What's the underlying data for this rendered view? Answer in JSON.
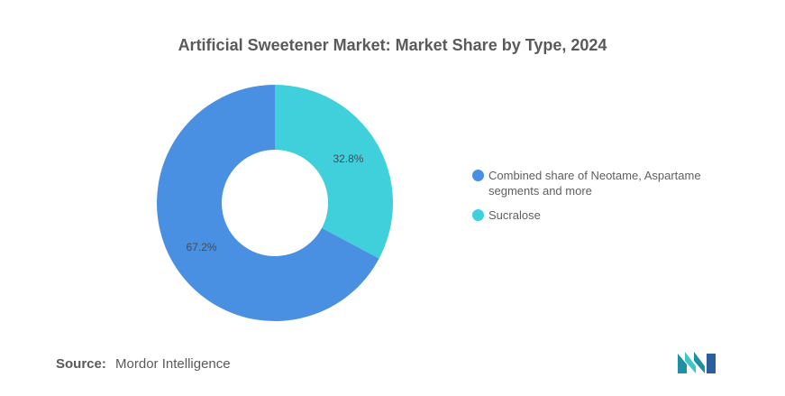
{
  "chart_data": {
    "type": "pie",
    "title": "Artificial Sweetener Market: Market Share by Type, 2024",
    "donut": true,
    "slices": [
      {
        "label": "Sucralose",
        "value": 32.8,
        "value_label": "32.8%",
        "color": "#40d0dc"
      },
      {
        "label": "Combined share of Neotame, Aspartame segments and more",
        "value": 67.2,
        "value_label": "67.2%",
        "color": "#4a90e2"
      }
    ],
    "legend_position": "right"
  },
  "legend": [
    {
      "label": "Combined share of Neotame, Aspartame segments and more",
      "color": "#4a90e2"
    },
    {
      "label": "Sucralose",
      "color": "#40d0dc"
    }
  ],
  "source": {
    "label": "Source:",
    "text": "Mordor Intelligence"
  },
  "logo": {
    "icon": "mordor-intelligence-logo-icon",
    "colors": [
      "#1f8fa6",
      "#3ec6c9",
      "#2a5f9e"
    ]
  }
}
